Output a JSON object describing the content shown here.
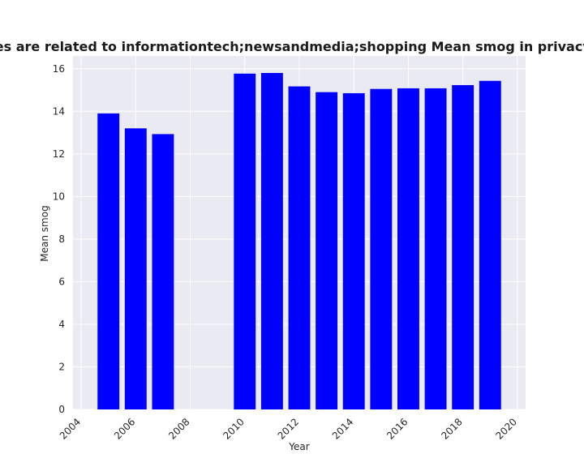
{
  "chart_data": {
    "type": "bar",
    "title": "Categories are related to informationtech;newsandmedia;shopping Mean smog in privacy policies",
    "xlabel": "Year",
    "ylabel": "Mean smog",
    "x": [
      2005,
      2006,
      2007,
      2010,
      2011,
      2012,
      2013,
      2014,
      2015,
      2016,
      2017,
      2018,
      2019
    ],
    "values": [
      13.9,
      13.2,
      12.93,
      15.77,
      15.8,
      15.17,
      14.9,
      14.85,
      15.05,
      15.08,
      15.08,
      15.23,
      15.43
    ],
    "xlim": [
      2003.7,
      2020.3
    ],
    "ylim": [
      0,
      16.6
    ],
    "xticks": [
      2004,
      2006,
      2008,
      2010,
      2012,
      2014,
      2016,
      2018,
      2020
    ],
    "yticks": [
      0,
      2,
      4,
      6,
      8,
      10,
      12,
      14,
      16
    ],
    "bar_color": "#0000ff",
    "plot_background": "#eaeaf2",
    "grid_color": "#ffffff",
    "grid": true
  }
}
